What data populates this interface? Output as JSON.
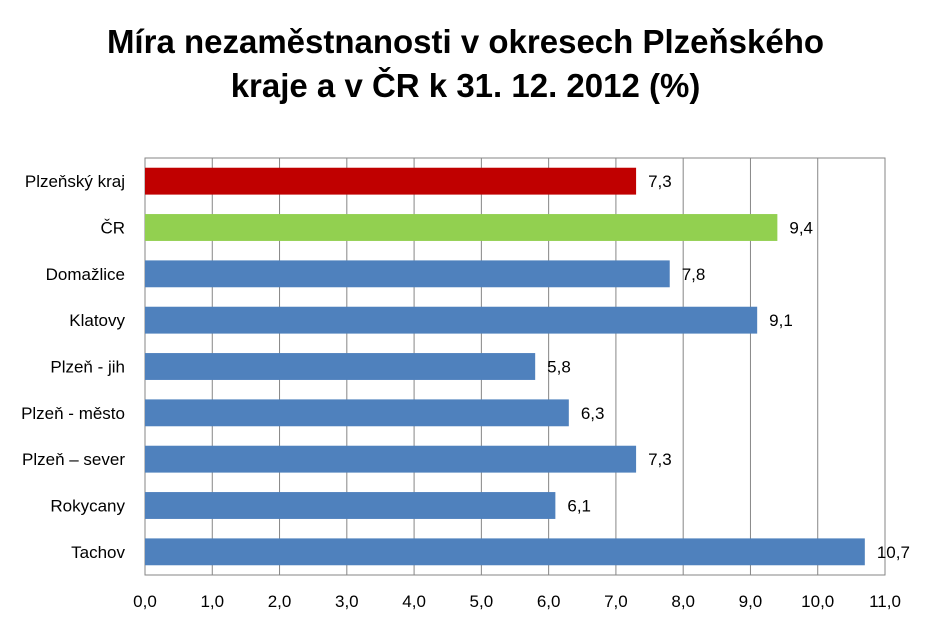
{
  "chart_data": {
    "type": "bar",
    "orientation": "horizontal",
    "title": [
      "Míra nezaměstnanosti v okresech Plzeňského",
      "kraje a v ČR k 31. 12. 2012 (%)"
    ],
    "xlabel": "",
    "ylabel": "",
    "xlim": [
      0,
      11
    ],
    "grid": true,
    "legend": "none",
    "ticks": [
      "0,0",
      "1,0",
      "2,0",
      "3,0",
      "4,0",
      "5,0",
      "6,0",
      "7,0",
      "8,0",
      "9,0",
      "10,0",
      "11,0"
    ],
    "categories": [
      "Plzeňský kraj",
      "ČR",
      "Domažlice",
      "Klatovy",
      "Plzeň - jih",
      "Plzeň - město",
      "Plzeň – sever",
      "Rokycany",
      "Tachov"
    ],
    "values": [
      7.3,
      9.4,
      7.8,
      9.1,
      5.8,
      6.3,
      7.3,
      6.1,
      10.7
    ],
    "value_labels": [
      "7,3",
      "9,4",
      "7,8",
      "9,1",
      "5,8",
      "6,3",
      "7,3",
      "6,1",
      "10,7"
    ],
    "colors": [
      "#c00000",
      "#92d050",
      "#4f81bd",
      "#4f81bd",
      "#4f81bd",
      "#4f81bd",
      "#4f81bd",
      "#4f81bd",
      "#4f81bd"
    ]
  }
}
